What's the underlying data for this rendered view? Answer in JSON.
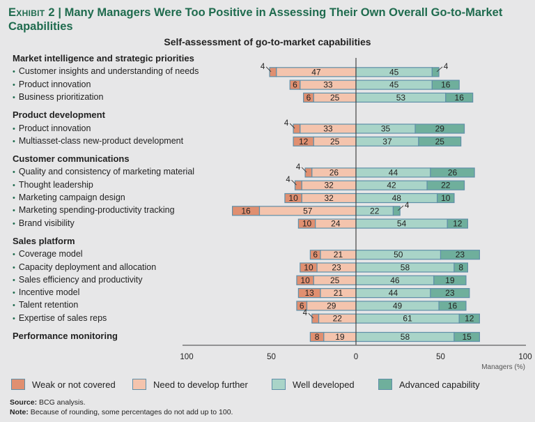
{
  "header": {
    "exhibit": "Exhibit 2",
    "separator": "|",
    "title": "Many Managers Were Too Positive in Assessing Their Own Overall Go-to-Market Capabilities"
  },
  "chart_data": {
    "type": "bar",
    "subtype": "diverging-stacked-horizontal",
    "title": "Self-assessment of go-to-market capabilities",
    "xlabel": "Managers (%)",
    "xlim": [
      -100,
      100
    ],
    "xticks": [
      "100",
      "50",
      "0",
      "50",
      "100"
    ],
    "legend_position": "bottom",
    "series": [
      {
        "name": "Weak or not covered",
        "side": "negative",
        "color": "#e08f70"
      },
      {
        "name": "Need to develop further",
        "side": "negative",
        "color": "#f4c4ad"
      },
      {
        "name": "Well developed",
        "side": "positive",
        "color": "#a9d4c8"
      },
      {
        "name": "Advanced capability",
        "side": "positive",
        "color": "#6faf9c"
      }
    ],
    "groups": [
      {
        "name": "Market intelligence and strategic priorities",
        "rows": [
          {
            "label": "Customer insights and understanding of needs",
            "values": [
              4,
              47,
              45,
              4
            ]
          },
          {
            "label": "Product innovation",
            "values": [
              6,
              33,
              45,
              16
            ]
          },
          {
            "label": "Business prioritization",
            "values": [
              6,
              25,
              53,
              16
            ]
          }
        ]
      },
      {
        "name": "Product development",
        "rows": [
          {
            "label": "Product innovation",
            "values": [
              4,
              33,
              35,
              29
            ]
          },
          {
            "label": "Multiasset-class new-product development",
            "values": [
              12,
              25,
              37,
              25
            ]
          }
        ]
      },
      {
        "name": "Customer communications",
        "rows": [
          {
            "label": "Quality and consistency of marketing material",
            "values": [
              4,
              26,
              44,
              26
            ]
          },
          {
            "label": "Thought leadership",
            "values": [
              4,
              32,
              42,
              22
            ]
          },
          {
            "label": "Marketing campaign design",
            "values": [
              10,
              32,
              48,
              10
            ]
          },
          {
            "label": "Marketing spending-productivity tracking",
            "values": [
              16,
              57,
              22,
              4
            ]
          },
          {
            "label": "Brand visibility",
            "values": [
              10,
              24,
              54,
              12
            ]
          }
        ]
      },
      {
        "name": "Sales platform",
        "rows": [
          {
            "label": "Coverage model",
            "values": [
              6,
              21,
              50,
              23
            ]
          },
          {
            "label": "Capacity deployment and allocation",
            "values": [
              10,
              23,
              58,
              8
            ]
          },
          {
            "label": "Sales efficiency and productivity",
            "values": [
              10,
              25,
              46,
              19
            ]
          },
          {
            "label": "Incentive model",
            "values": [
              13,
              21,
              44,
              23
            ]
          },
          {
            "label": "Talent retention",
            "values": [
              6,
              29,
              49,
              16
            ]
          },
          {
            "label": "Expertise of sales reps",
            "values": [
              4,
              22,
              61,
              12
            ]
          }
        ]
      },
      {
        "name": "Performance monitoring",
        "rows": [
          {
            "label": "",
            "values": [
              8,
              19,
              58,
              15
            ]
          }
        ]
      }
    ]
  },
  "footer": {
    "source_label": "Source:",
    "source_text": "BCG analysis.",
    "note_label": "Note:",
    "note_text": "Because of rounding, some percentages do not add up to 100."
  }
}
